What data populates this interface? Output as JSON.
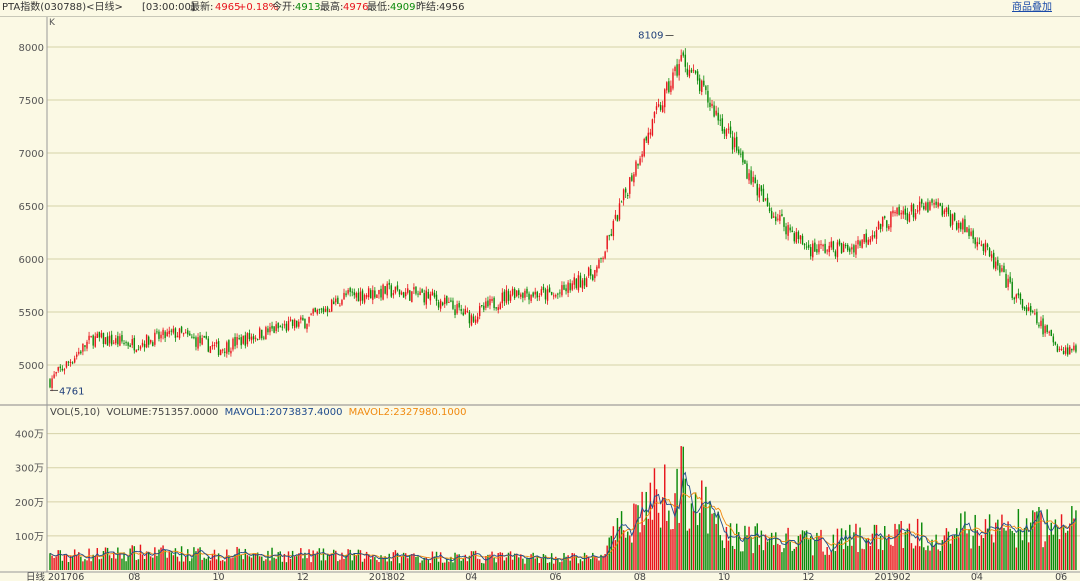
{
  "header": {
    "symbol": "PTA指数(030788)<日线>",
    "time": "[03:00:00]",
    "last_label": "最新:",
    "last_value": "4965",
    "change": "+0.18%",
    "open_label": "今开:",
    "open_value": "4913",
    "high_label": "最高:",
    "high_value": "4976",
    "low_label": "最低:",
    "low_value": "4909",
    "prev_label": "昨结:",
    "prev_value": "4956",
    "overlay_link": "商品叠加"
  },
  "colors": {
    "up": "#e8141c",
    "down": "#0a8a0a",
    "ma1": "#1e4a8c",
    "ma2": "#f08a10",
    "background": "#fbf9e4",
    "grid": "#d6d2a8"
  },
  "chart_data": [
    {
      "type": "candlestick",
      "panel_label": "K",
      "y_ticks": [
        5000,
        5500,
        6000,
        6500,
        7000,
        7500,
        8000
      ],
      "ylim": [
        4670,
        8160
      ],
      "annotations": [
        {
          "label": "8109",
          "value": 8109,
          "kind": "high"
        },
        {
          "label": "4761",
          "value": 4761,
          "kind": "low"
        }
      ],
      "series": [
        {
          "date": "2017-06",
          "close": 4850
        },
        {
          "date": "2017-07",
          "close": 5250
        },
        {
          "date": "2017-08",
          "close": 5200
        },
        {
          "date": "2017-09",
          "close": 5300
        },
        {
          "date": "2017-10",
          "close": 5150
        },
        {
          "date": "2017-11",
          "close": 5300
        },
        {
          "date": "2017-12",
          "close": 5400
        },
        {
          "date": "2018-01",
          "close": 5650
        },
        {
          "date": "2018-02",
          "close": 5700
        },
        {
          "date": "2018-03",
          "close": 5650
        },
        {
          "date": "2018-04",
          "close": 5450
        },
        {
          "date": "2018-05",
          "close": 5700
        },
        {
          "date": "2018-06",
          "close": 5650
        },
        {
          "date": "2018-07",
          "close": 5900
        },
        {
          "date": "2018-08",
          "close": 7000
        },
        {
          "date": "2018-09",
          "close": 7900
        },
        {
          "date": "2018-10",
          "close": 7250
        },
        {
          "date": "2018-11",
          "close": 6500
        },
        {
          "date": "2018-12",
          "close": 6100
        },
        {
          "date": "2019-01",
          "close": 6100
        },
        {
          "date": "2019-02",
          "close": 6400
        },
        {
          "date": "2019-03",
          "close": 6500
        },
        {
          "date": "2019-04",
          "close": 6200
        },
        {
          "date": "2019-05",
          "close": 5600
        },
        {
          "date": "2019-06",
          "close": 5150
        }
      ]
    },
    {
      "type": "bar",
      "indicator": "VOL(5,10)",
      "volume_label": "VOLUME:751357.0000",
      "mavol1_label": "MAVOL1:2073837.4000",
      "mavol2_label": "MAVOL2:2327980.1000",
      "y_ticks": [
        "100万",
        "200万",
        "300万",
        "400万"
      ],
      "y_tick_values": [
        1000000,
        2000000,
        3000000,
        4000000
      ],
      "ylim": [
        0,
        4400000
      ],
      "x_ticks": [
        "日线",
        "201706",
        "08",
        "10",
        "12",
        "201802",
        "04",
        "06",
        "08",
        "10",
        "12",
        "201902",
        "04",
        "06"
      ],
      "volume_level": [
        {
          "date": "2017-06",
          "value": 400000
        },
        {
          "date": "2017-08",
          "value": 500000
        },
        {
          "date": "2018-02",
          "value": 400000
        },
        {
          "date": "2018-07",
          "value": 350000
        },
        {
          "date": "2018-08",
          "value": 1800000
        },
        {
          "date": "2018-09",
          "value": 2500000
        },
        {
          "date": "2018-10",
          "value": 1000000
        },
        {
          "date": "2018-12",
          "value": 800000
        },
        {
          "date": "2019-03",
          "value": 1100000
        },
        {
          "date": "2019-06",
          "value": 1300000
        }
      ]
    }
  ]
}
